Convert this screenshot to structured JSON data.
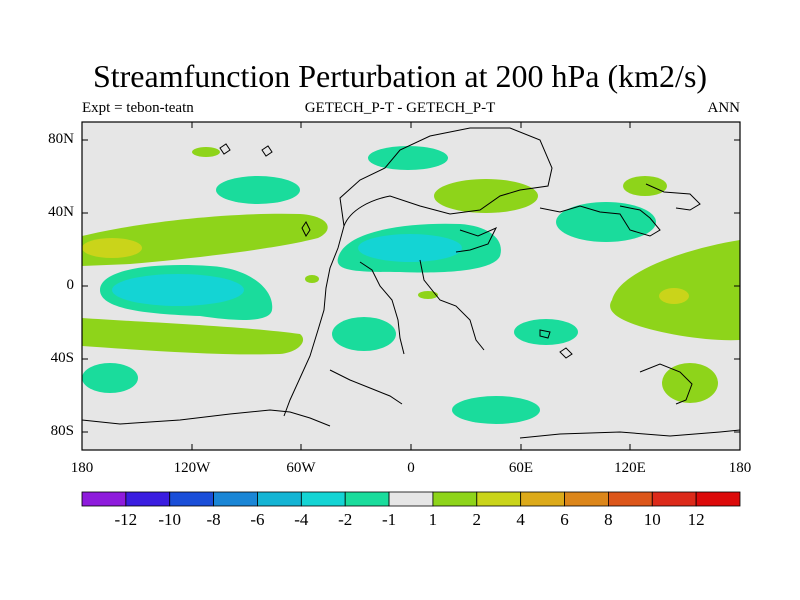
{
  "title": "Streamfunction Perturbation at 200 hPa (km2/s)",
  "subtitle_left": "Expt = tebon-teatn",
  "subtitle_center": "GETECH_P-T - GETECH_P-T",
  "subtitle_right": "ANN",
  "y_ticks": [
    "80N",
    "40N",
    "0",
    "40S",
    "80S"
  ],
  "x_ticks": [
    "180",
    "120W",
    "60W",
    "0",
    "60E",
    "120E",
    "180"
  ],
  "colorbar": {
    "labels": [
      "-12",
      "-10",
      "-8",
      "-6",
      "-4",
      "-2",
      "-1",
      "1",
      "2",
      "4",
      "6",
      "8",
      "10",
      "12"
    ],
    "colors": [
      "#8e1bdc",
      "#3a1de0",
      "#1a4ed8",
      "#1a86d6",
      "#14b4d4",
      "#14d4d4",
      "#1adc9c",
      "#e6e6e6",
      "#8ed41a",
      "#cad41a",
      "#dcaa1a",
      "#dc861a",
      "#dc561a",
      "#dc2a1a",
      "#dc0a0a"
    ]
  },
  "colors": {
    "background_field": "#e6e6e6",
    "level_neg_2": "#1adc9c",
    "level_neg_4": "#14d4d4",
    "level_pos_1": "#8ed41a",
    "level_pos_2": "#cad41a"
  }
}
